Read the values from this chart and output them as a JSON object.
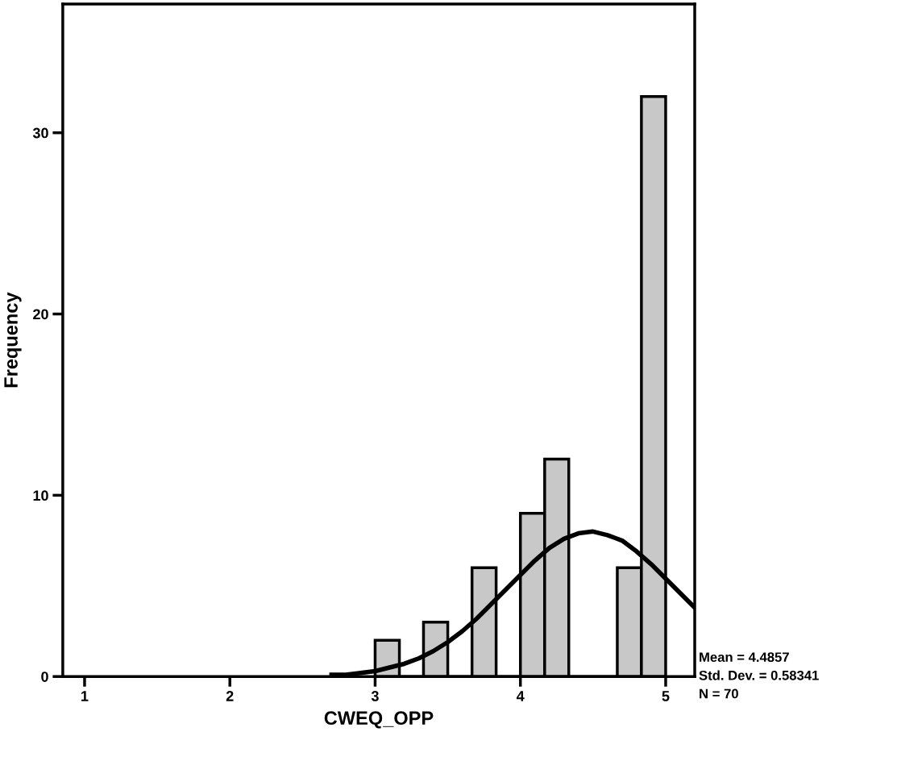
{
  "chart_data": {
    "type": "histogram",
    "xlabel": "CWEQ_OPP",
    "ylabel": "Frequency",
    "xlim": [
      0.85,
      5.2
    ],
    "xticks": [
      1,
      2,
      3,
      4,
      5
    ],
    "ylim": [
      0,
      37.1
    ],
    "yticks": [
      0,
      10,
      20,
      30
    ],
    "grid": false,
    "legend": false,
    "series": [
      {
        "type": "histogram",
        "color": "#c8c8c8",
        "bins": [
          3.0,
          3.167,
          3.333,
          3.5,
          3.667,
          3.833,
          4.0,
          4.167,
          4.333,
          4.5,
          4.667,
          4.833,
          5.0
        ],
        "values": [
          2,
          0,
          3,
          0,
          6,
          0,
          9,
          12,
          0,
          0,
          6,
          32
        ]
      },
      {
        "type": "line",
        "color": "#000000",
        "x": [
          2.7,
          2.8,
          2.9,
          3.0,
          3.1,
          3.2,
          3.3,
          3.4,
          3.5,
          3.6,
          3.7,
          3.8,
          3.9,
          4.0,
          4.1,
          4.2,
          4.3,
          4.4,
          4.5,
          4.6,
          4.7,
          4.8,
          4.9,
          5.0,
          5.1,
          5.2
        ],
        "values": [
          0.1,
          0.1,
          0.2,
          0.3,
          0.5,
          0.7,
          1.0,
          1.4,
          1.9,
          2.5,
          3.2,
          4.0,
          4.8,
          5.6,
          6.4,
          7.1,
          7.6,
          7.9,
          8.0,
          7.8,
          7.5,
          6.9,
          6.2,
          5.4,
          4.6,
          3.8
        ]
      }
    ],
    "annotations": [
      "Mean = 4.4857",
      "Std. Dev. = 0.58341",
      "N = 70"
    ]
  }
}
